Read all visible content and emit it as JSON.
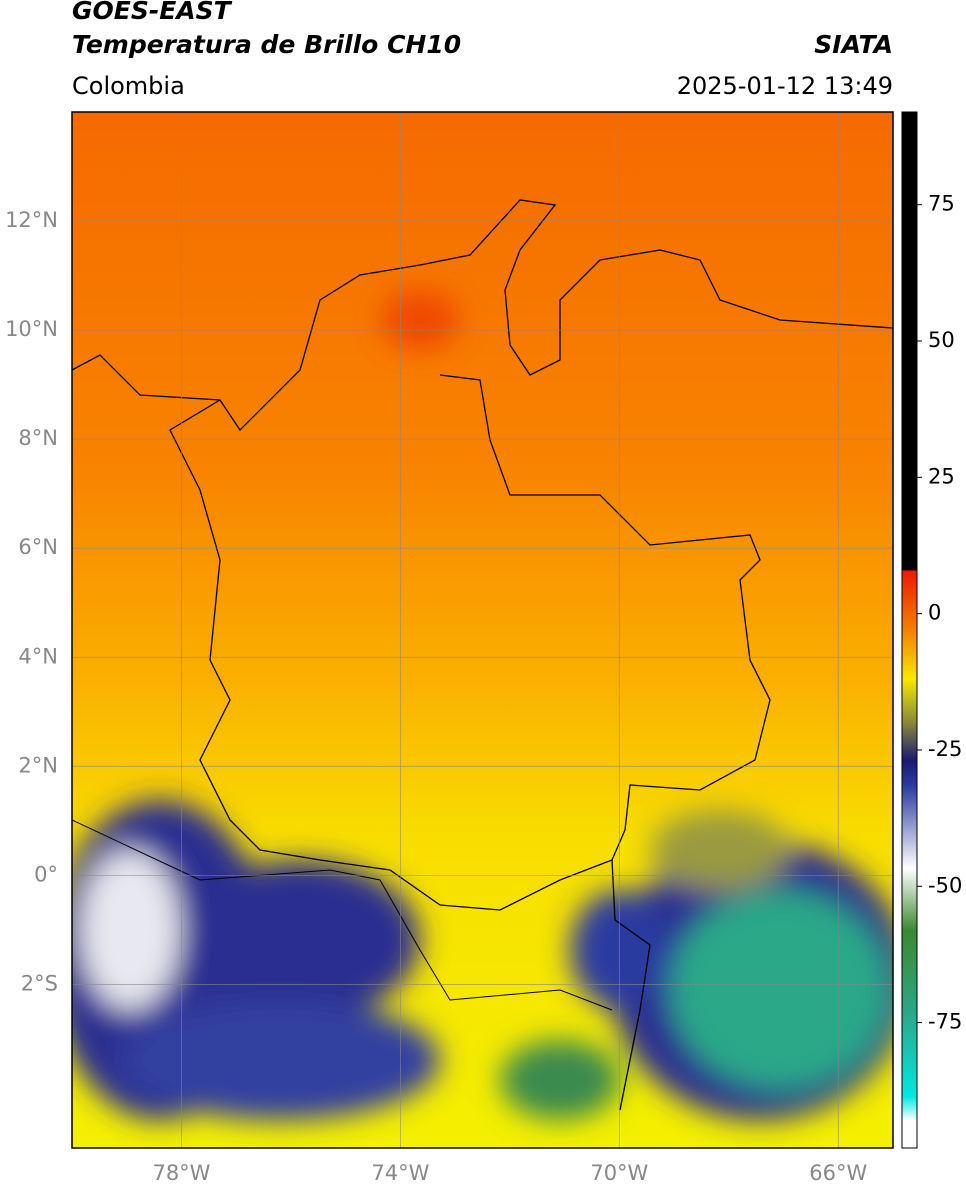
{
  "header": {
    "satellite": "GOES-EAST",
    "title": "Temperatura de Brillo CH10",
    "source": "SIATA",
    "region": "Colombia",
    "datetime": "2025-01-12 13:49"
  },
  "map": {
    "lonlim": [
      -80,
      -65
    ],
    "latlim": [
      -5,
      14
    ],
    "grid": true,
    "lon_ticks": [
      {
        "value": -78,
        "label": "78°W"
      },
      {
        "value": -74,
        "label": "74°W"
      },
      {
        "value": -70,
        "label": "70°W"
      },
      {
        "value": -66,
        "label": "66°W"
      }
    ],
    "lat_ticks": [
      {
        "value": 12,
        "label": "12°N"
      },
      {
        "value": 10,
        "label": "10°N"
      },
      {
        "value": 8,
        "label": "8°N"
      },
      {
        "value": 6,
        "label": "6°N"
      },
      {
        "value": 4,
        "label": "4°N"
      },
      {
        "value": 2,
        "label": "2°N"
      },
      {
        "value": 0,
        "label": "0°"
      },
      {
        "value": -2,
        "label": "2°S"
      }
    ]
  },
  "colorbar": {
    "lim": [
      -98,
      92
    ],
    "ticks": [
      75,
      50,
      25,
      0,
      -25,
      -50,
      -75
    ]
  }
}
